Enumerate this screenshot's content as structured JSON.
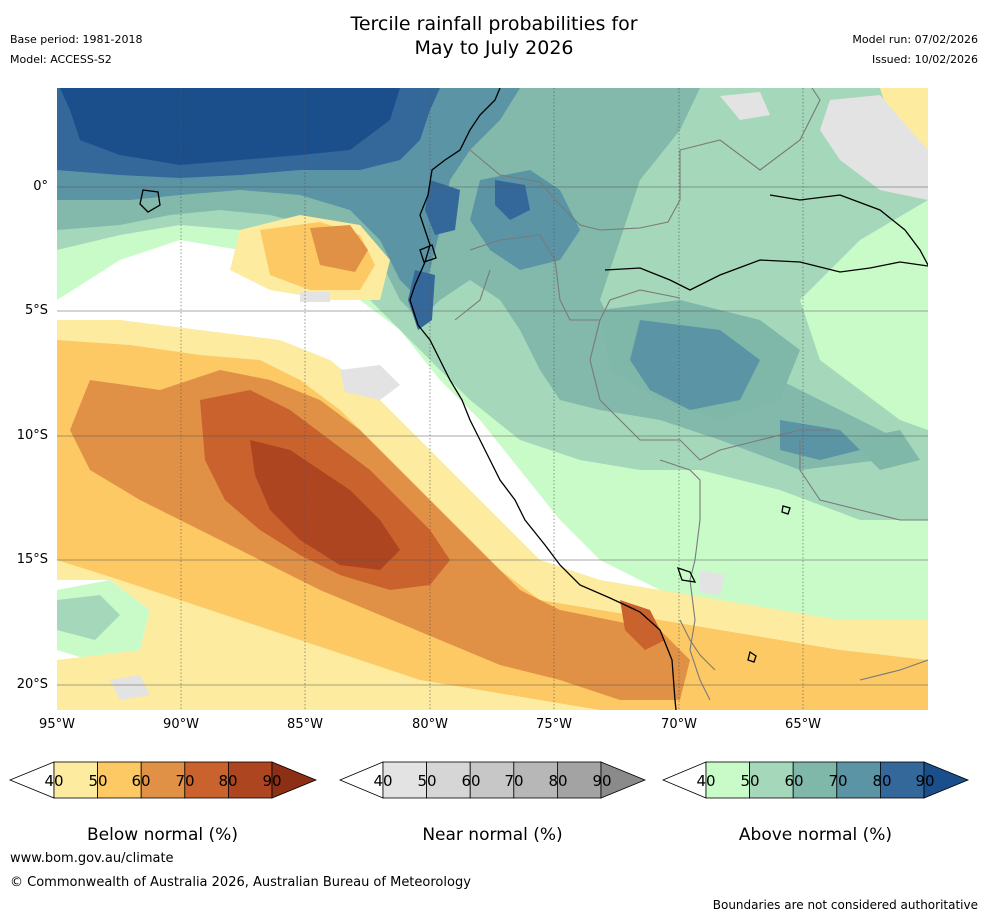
{
  "header": {
    "title_line1": "Tercile rainfall probabilities for",
    "title_line2": "May to July 2026",
    "base_period": "Base period: 1981-2018",
    "model": "Model: ACCESS-S2",
    "model_run": "Model run: 07/02/2026",
    "issued": "Issued: 10/02/2026"
  },
  "map": {
    "lat_labels": [
      "0°",
      "5°S",
      "10°S",
      "15°S",
      "20°S"
    ],
    "lon_labels": [
      "95°W",
      "90°W",
      "85°W",
      "80°W",
      "75°W",
      "70°W",
      "65°W"
    ],
    "colors": {
      "ocean_land_base": "#ffffff",
      "neutral_grey": "#e3e3e3"
    }
  },
  "legends": [
    {
      "title": "Below normal (%)",
      "ticks": [
        "40",
        "50",
        "60",
        "70",
        "80",
        "90"
      ],
      "colors": [
        "#fdeba0",
        "#fdc965",
        "#e09146",
        "#c9622c",
        "#ad4521",
        "#8d2f15"
      ]
    },
    {
      "title": "Near normal (%)",
      "ticks": [
        "40",
        "50",
        "60",
        "70",
        "80",
        "90"
      ],
      "colors": [
        "#e3e3e3",
        "#d6d6d6",
        "#c7c7c7",
        "#b7b7b7",
        "#a3a3a3",
        "#8a8a8a"
      ]
    },
    {
      "title": "Above normal (%)",
      "ticks": [
        "40",
        "50",
        "60",
        "70",
        "80",
        "90"
      ],
      "colors": [
        "#c9fbc9",
        "#a5d8ba",
        "#7fb7a9",
        "#5a94a5",
        "#34679a",
        "#1a4f8c"
      ]
    }
  ],
  "footer": {
    "url": "www.bom.gov.au/climate",
    "copyright": "© Commonwealth of Australia 2026, Australian Bureau of Meteorology",
    "disclaimer": "Boundaries are not considered authoritative"
  }
}
